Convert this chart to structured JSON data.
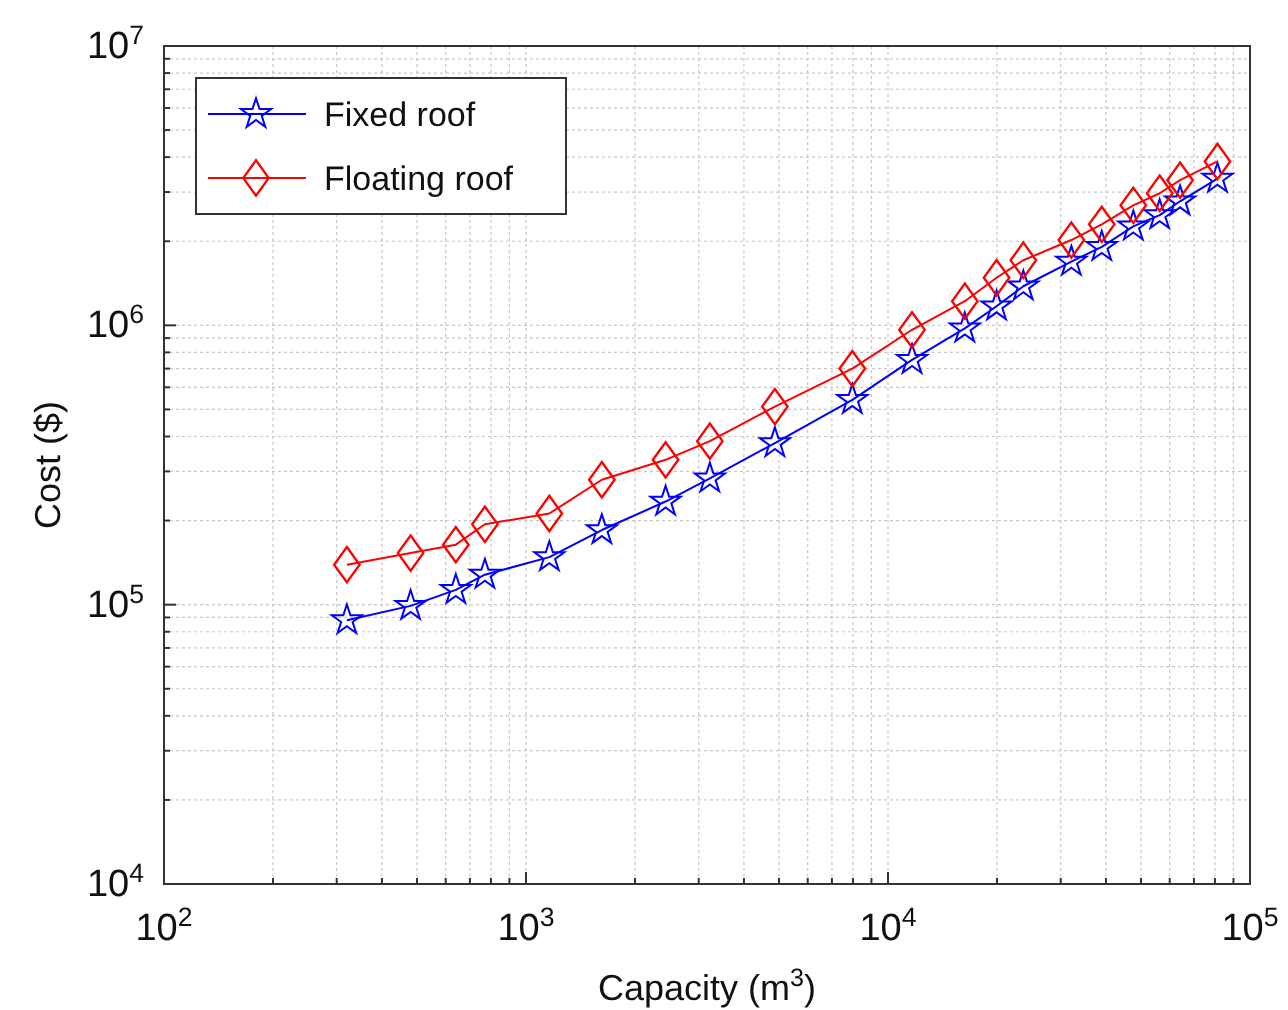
{
  "chart_data": {
    "type": "line",
    "xlabel": "Capacity (m$^{3}$)",
    "ylabel": "Cost ($)",
    "log": "xy",
    "grid": true,
    "legend": "top left",
    "xlim": [
      100,
      100000
    ],
    "ylim": [
      10000,
      10000000
    ],
    "xticks": [
      {
        "value": 100,
        "label": "10$^{2}$"
      },
      {
        "value": 200,
        "label": null
      },
      {
        "value": 300,
        "label": null
      },
      {
        "value": 400,
        "label": null
      },
      {
        "value": 500,
        "label": null
      },
      {
        "value": 600,
        "label": null
      },
      {
        "value": 700,
        "label": null
      },
      {
        "value": 800,
        "label": null
      },
      {
        "value": 900,
        "label": null
      },
      {
        "value": 1000,
        "label": "10$^{3}$"
      },
      {
        "value": 2000,
        "label": null
      },
      {
        "value": 3000,
        "label": null
      },
      {
        "value": 4000,
        "label": null
      },
      {
        "value": 5000,
        "label": null
      },
      {
        "value": 6000,
        "label": null
      },
      {
        "value": 7000,
        "label": null
      },
      {
        "value": 8000,
        "label": null
      },
      {
        "value": 9000,
        "label": null
      },
      {
        "value": 10000,
        "label": "10$^{4}$"
      },
      {
        "value": 20000,
        "label": null
      },
      {
        "value": 30000,
        "label": null
      },
      {
        "value": 40000,
        "label": null
      },
      {
        "value": 50000,
        "label": null
      },
      {
        "value": 60000,
        "label": null
      },
      {
        "value": 70000,
        "label": null
      },
      {
        "value": 80000,
        "label": null
      },
      {
        "value": 90000,
        "label": null
      },
      {
        "value": 100000,
        "label": "10$^{5}$"
      }
    ],
    "yticks": [
      {
        "value": 10000,
        "label": "10$^{4}$"
      },
      {
        "value": 20000,
        "label": null
      },
      {
        "value": 30000,
        "label": null
      },
      {
        "value": 40000,
        "label": null
      },
      {
        "value": 50000,
        "label": null
      },
      {
        "value": 60000,
        "label": null
      },
      {
        "value": 70000,
        "label": null
      },
      {
        "value": 80000,
        "label": null
      },
      {
        "value": 90000,
        "label": null
      },
      {
        "value": 100000,
        "label": "10$^{5}$"
      },
      {
        "value": 200000,
        "label": null
      },
      {
        "value": 300000,
        "label": null
      },
      {
        "value": 400000,
        "label": null
      },
      {
        "value": 500000,
        "label": null
      },
      {
        "value": 600000,
        "label": null
      },
      {
        "value": 700000,
        "label": null
      },
      {
        "value": 800000,
        "label": null
      },
      {
        "value": 900000,
        "label": null
      },
      {
        "value": 1000000,
        "label": "10$^{6}$"
      },
      {
        "value": 2000000,
        "label": null
      },
      {
        "value": 3000000,
        "label": null
      },
      {
        "value": 4000000,
        "label": null
      },
      {
        "value": 5000000,
        "label": null
      },
      {
        "value": 6000000,
        "label": null
      },
      {
        "value": 7000000,
        "label": null
      },
      {
        "value": 8000000,
        "label": null
      },
      {
        "value": 9000000,
        "label": null
      },
      {
        "value": 10000000,
        "label": "10$^{7}$"
      }
    ],
    "x": [
      320,
      480,
      640,
      770,
      1160,
      1620,
      2430,
      3220,
      4870,
      7970,
      11650,
      16300,
      19950,
      23650,
      32100,
      38950,
      47600,
      56300,
      64100,
      81300
    ],
    "series": [
      {
        "name": "Fixed roof",
        "color": "#0000ff",
        "marker": "star",
        "values": [
          88000,
          99000,
          113000,
          128000,
          148000,
          185000,
          234000,
          283000,
          379000,
          541000,
          752000,
          975000,
          1170000,
          1380000,
          1690000,
          1910000,
          2260000,
          2480000,
          2780000,
          3350000
        ]
      },
      {
        "name": "Floating roof",
        "color": "#ff0000",
        "marker": "diamond",
        "values": [
          139000,
          153000,
          164000,
          194000,
          212000,
          280000,
          330000,
          385000,
          512000,
          700000,
          964000,
          1220000,
          1480000,
          1710000,
          2020000,
          2300000,
          2690000,
          2970000,
          3310000,
          3860000
        ]
      }
    ]
  }
}
